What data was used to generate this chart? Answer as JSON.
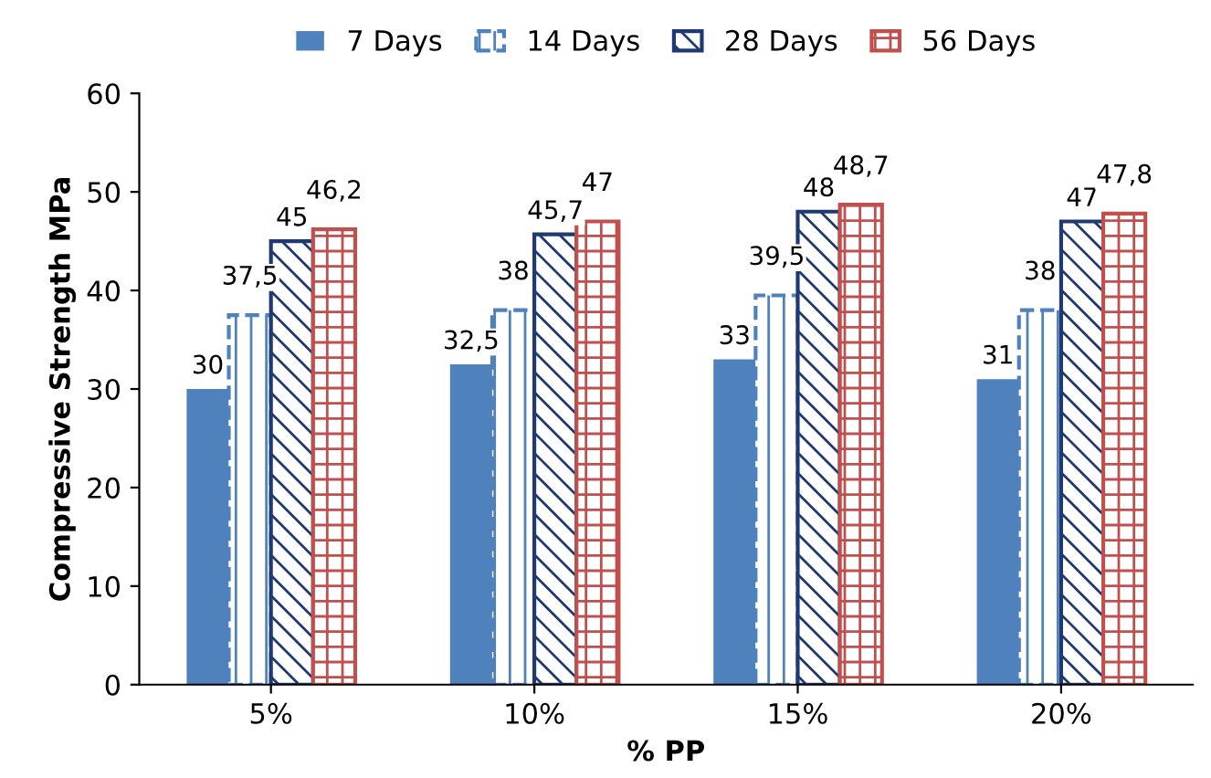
{
  "chart_data": {
    "type": "bar",
    "xlabel": "% PP",
    "ylabel": "Compressive Strength MPa",
    "categories": [
      "5%",
      "10%",
      "15%",
      "20%"
    ],
    "series": [
      {
        "name": "7 Days",
        "color": "#4f81bd",
        "values": [
          30,
          32.5,
          33,
          31
        ],
        "value_labels": [
          "30",
          "32,5",
          "33",
          "31"
        ]
      },
      {
        "name": "14 Days",
        "color": "#4f81bd",
        "values": [
          37.5,
          38,
          39.5,
          38
        ],
        "value_labels": [
          "37,5",
          "38",
          "39,5",
          "38"
        ]
      },
      {
        "name": "28 Days",
        "color": "#1f3a73",
        "values": [
          45,
          45.7,
          48,
          47
        ],
        "value_labels": [
          "45",
          "45,7",
          "48",
          "47"
        ]
      },
      {
        "name": "56 Days",
        "color": "#c0504d",
        "values": [
          46.2,
          47,
          48.7,
          47.8
        ],
        "value_labels": [
          "46,2",
          "47",
          "48,7",
          "47,8"
        ]
      }
    ],
    "ylim": [
      0,
      60
    ],
    "yticks": [
      0,
      10,
      20,
      30,
      40,
      50,
      60
    ],
    "grid": false,
    "legend": "top"
  }
}
